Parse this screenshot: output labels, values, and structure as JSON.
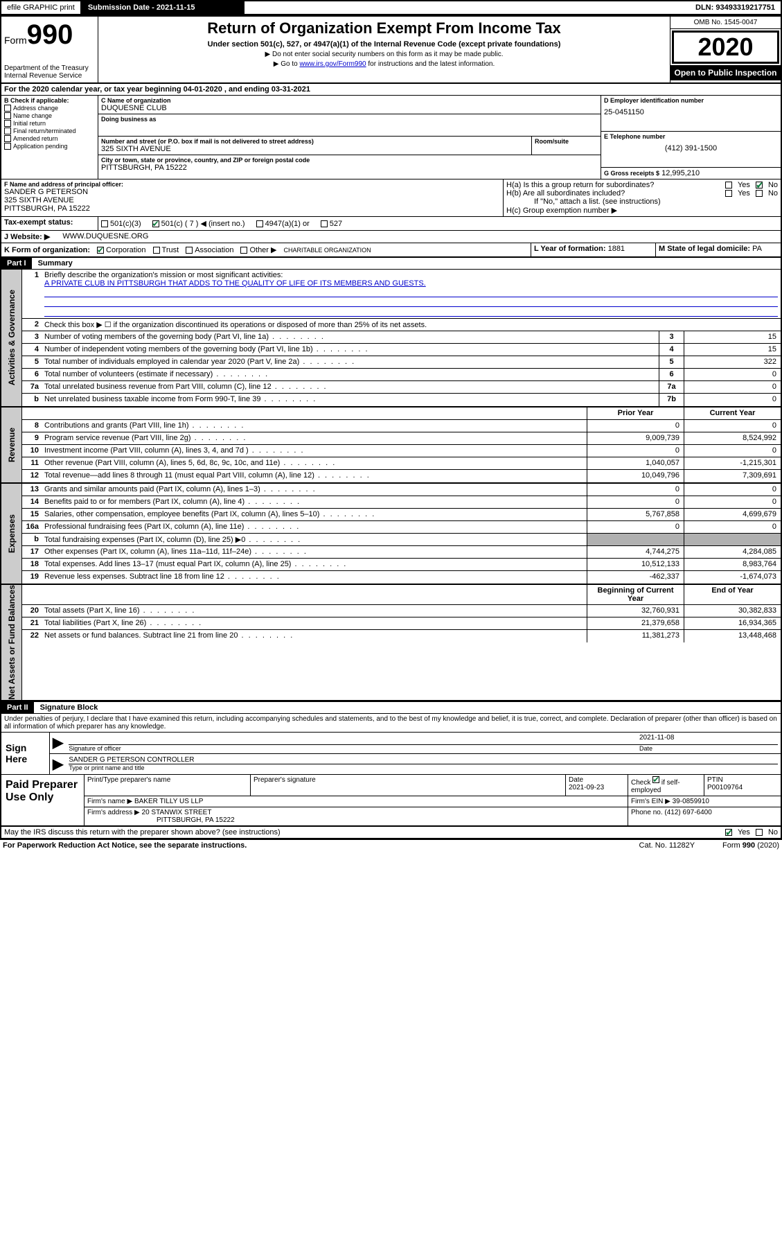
{
  "topbar": {
    "efile": "efile GRAPHIC print",
    "submission_label": "Submission Date - 2021-11-15",
    "dln": "DLN: 93493319217751"
  },
  "header": {
    "form_word": "Form",
    "form_num": "990",
    "dept": "Department of the Treasury\nInternal Revenue Service",
    "title": "Return of Organization Exempt From Income Tax",
    "sub": "Under section 501(c), 527, or 4947(a)(1) of the Internal Revenue Code (except private foundations)",
    "note1": "▶ Do not enter social security numbers on this form as it may be made public.",
    "note2_pre": "▶ Go to ",
    "note2_link": "www.irs.gov/Form990",
    "note2_post": " for instructions and the latest information.",
    "omb": "OMB No. 1545-0047",
    "year": "2020",
    "open": "Open to Public Inspection"
  },
  "line_a": "For the 2020 calendar year, or tax year beginning 04-01-2020     , and ending 03-31-2021",
  "section_b": {
    "heading": "B Check if applicable:",
    "items": [
      "Address change",
      "Name change",
      "Initial return",
      "Final return/terminated",
      "Amended return",
      "Application pending"
    ]
  },
  "section_c": {
    "name_label": "C Name of organization",
    "org_name": "DUQUESNE CLUB",
    "dba_label": "Doing business as",
    "addr_label": "Number and street (or P.O. box if mail is not delivered to street address)",
    "suite_label": "Room/suite",
    "street": "325 SIXTH AVENUE",
    "city_label": "City or town, state or province, country, and ZIP or foreign postal code",
    "city": "PITTSBURGH, PA  15222"
  },
  "section_d": {
    "label": "D Employer identification number",
    "value": "25-0451150"
  },
  "section_e": {
    "label": "E Telephone number",
    "value": "(412) 391-1500"
  },
  "section_g": {
    "label": "G Gross receipts $",
    "value": "12,995,210"
  },
  "section_f": {
    "label": "F  Name and address of principal officer:",
    "name": "SANDER G PETERSON",
    "street": "325 SIXTH AVENUE",
    "city": "PITTSBURGH, PA  15222"
  },
  "section_h": {
    "ha": "H(a)  Is this a group return for subordinates?",
    "hb": "H(b)  Are all subordinates included?",
    "note": "If \"No,\" attach a list. (see instructions)",
    "hc": "H(c)  Group exemption number ▶"
  },
  "section_i": {
    "label": "Tax-exempt status:",
    "opt1": "501(c)(3)",
    "opt2": "501(c) ( 7 ) ◀ (insert no.)",
    "opt3": "4947(a)(1) or",
    "opt4": "527"
  },
  "section_j": {
    "label": "J     Website: ▶",
    "value": "WWW.DUQUESNE.ORG"
  },
  "section_k": {
    "label": "K Form of organization:",
    "opts": [
      "Corporation",
      "Trust",
      "Association",
      "Other ▶"
    ],
    "other_val": "CHARITABLE ORGANIZATION"
  },
  "section_l": {
    "label": "L Year of formation:",
    "value": "1881"
  },
  "section_m": {
    "label": "M State of legal domicile:",
    "value": "PA"
  },
  "part1": {
    "hdr": "Part I",
    "title": "Summary",
    "l1": "Briefly describe the organization's mission or most significant activities:",
    "l1_text": "A PRIVATE CLUB IN PITTSBURGH THAT ADDS TO THE QUALITY OF LIFE OF ITS MEMBERS AND GUESTS.",
    "l2": "Check this box ▶ ☐  if the organization discontinued its operations or disposed of more than 25% of its net assets.",
    "sections": {
      "gov": "Activities & Governance",
      "rev": "Revenue",
      "exp": "Expenses",
      "net": "Net Assets or Fund Balances"
    },
    "hdr_prior": "Prior Year",
    "hdr_curr": "Current Year",
    "hdr_beg": "Beginning of Current Year",
    "hdr_end": "End of Year",
    "lines_gov": [
      {
        "n": "3",
        "t": "Number of voting members of the governing body (Part VI, line 1a)",
        "box": "3",
        "v": "15"
      },
      {
        "n": "4",
        "t": "Number of independent voting members of the governing body (Part VI, line 1b)",
        "box": "4",
        "v": "15"
      },
      {
        "n": "5",
        "t": "Total number of individuals employed in calendar year 2020 (Part V, line 2a)",
        "box": "5",
        "v": "322"
      },
      {
        "n": "6",
        "t": "Total number of volunteers (estimate if necessary)",
        "box": "6",
        "v": "0"
      },
      {
        "n": "7a",
        "t": "Total unrelated business revenue from Part VIII, column (C), line 12",
        "box": "7a",
        "v": "0"
      },
      {
        "n": "b",
        "t": "Net unrelated business taxable income from Form 990-T, line 39",
        "box": "7b",
        "v": "0"
      }
    ],
    "lines_rev": [
      {
        "n": "8",
        "t": "Contributions and grants (Part VIII, line 1h)",
        "p": "0",
        "c": "0"
      },
      {
        "n": "9",
        "t": "Program service revenue (Part VIII, line 2g)",
        "p": "9,009,739",
        "c": "8,524,992"
      },
      {
        "n": "10",
        "t": "Investment income (Part VIII, column (A), lines 3, 4, and 7d )",
        "p": "0",
        "c": "0"
      },
      {
        "n": "11",
        "t": "Other revenue (Part VIII, column (A), lines 5, 6d, 8c, 9c, 10c, and 11e)",
        "p": "1,040,057",
        "c": "-1,215,301"
      },
      {
        "n": "12",
        "t": "Total revenue—add lines 8 through 11 (must equal Part VIII, column (A), line 12)",
        "p": "10,049,796",
        "c": "7,309,691"
      }
    ],
    "lines_exp": [
      {
        "n": "13",
        "t": "Grants and similar amounts paid (Part IX, column (A), lines 1–3)",
        "p": "0",
        "c": "0"
      },
      {
        "n": "14",
        "t": "Benefits paid to or for members (Part IX, column (A), line 4)",
        "p": "0",
        "c": "0"
      },
      {
        "n": "15",
        "t": "Salaries, other compensation, employee benefits (Part IX, column (A), lines 5–10)",
        "p": "5,767,858",
        "c": "4,699,679"
      },
      {
        "n": "16a",
        "t": "Professional fundraising fees (Part IX, column (A), line 11e)",
        "p": "0",
        "c": "0"
      },
      {
        "n": "b",
        "t": "Total fundraising expenses (Part IX, column (D), line 25) ▶0",
        "p": "SHADED",
        "c": "SHADED"
      },
      {
        "n": "17",
        "t": "Other expenses (Part IX, column (A), lines 11a–11d, 11f–24e)",
        "p": "4,744,275",
        "c": "4,284,085"
      },
      {
        "n": "18",
        "t": "Total expenses. Add lines 13–17 (must equal Part IX, column (A), line 25)",
        "p": "10,512,133",
        "c": "8,983,764"
      },
      {
        "n": "19",
        "t": "Revenue less expenses. Subtract line 18 from line 12",
        "p": "-462,337",
        "c": "-1,674,073"
      }
    ],
    "lines_net": [
      {
        "n": "20",
        "t": "Total assets (Part X, line 16)",
        "p": "32,760,931",
        "c": "30,382,833"
      },
      {
        "n": "21",
        "t": "Total liabilities (Part X, line 26)",
        "p": "21,379,658",
        "c": "16,934,365"
      },
      {
        "n": "22",
        "t": "Net assets or fund balances. Subtract line 21 from line 20",
        "p": "11,381,273",
        "c": "13,448,468"
      }
    ]
  },
  "part2": {
    "hdr": "Part II",
    "title": "Signature Block",
    "perjury": "Under penalties of perjury, I declare that I have examined this return, including accompanying schedules and statements, and to the best of my knowledge and belief, it is true, correct, and complete. Declaration of preparer (other than officer) is based on all information of which preparer has any knowledge.",
    "sign_here": "Sign Here",
    "sig_officer": "Signature of officer",
    "sig_date_label": "Date",
    "sig_date": "2021-11-08",
    "officer_name": "SANDER G PETERSON CONTROLLER",
    "type_name": "Type or print name and title",
    "paid_prep": "Paid Preparer Use Only",
    "prep_name_label": "Print/Type preparer's name",
    "prep_sig_label": "Preparer's signature",
    "prep_date_label": "Date",
    "prep_date": "2021-09-23",
    "check_self": "Check ☑ if self-employed",
    "ptin_label": "PTIN",
    "ptin": "P00109764",
    "firm_name_label": "Firm's name    ▶",
    "firm_name": "BAKER TILLY US LLP",
    "firm_ein_label": "Firm's EIN ▶",
    "firm_ein": "39-0859910",
    "firm_addr_label": "Firm's address ▶",
    "firm_addr1": "20 STANWIX STREET",
    "firm_addr2": "PITTSBURGH, PA  15222",
    "phone_label": "Phone no.",
    "phone": "(412) 697-6400",
    "discuss": "May the IRS discuss this return with the preparer shown above? (see instructions)"
  },
  "footer": {
    "left": "For Paperwork Reduction Act Notice, see the separate instructions.",
    "center": "Cat. No. 11282Y",
    "right": "Form 990 (2020)"
  }
}
